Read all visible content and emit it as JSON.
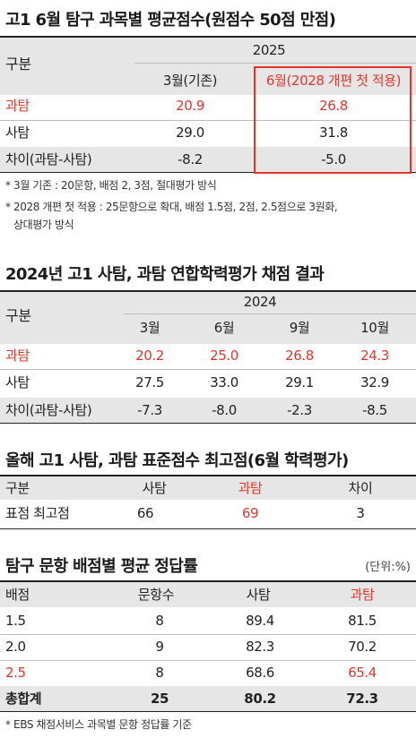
{
  "section1": {
    "title": "고1 6월 탐구 과목별 평균점수(원점수 50점 만점)",
    "header_label": "구분",
    "year": "2025",
    "col1": "3월(기존)",
    "col2": "6월(2028 개편 첫 적용)",
    "rows": [
      {
        "label": "과탐",
        "v1": "20.9",
        "v2": "26.8"
      },
      {
        "label": "사탐",
        "v1": "29.0",
        "v2": "31.8"
      },
      {
        "label": "차이(과탐-사탐)",
        "v1": "-8.2",
        "v2": "-5.0"
      }
    ],
    "note1": "* 3월 기존 : 20문항, 배점 2, 3점, 절대평가 방식",
    "note2a": "* 2028 개편 첫 적용 : 25문항으로 확대, 배점 1.5점, 2점, 2.5점으로 3원화,",
    "note2b": "상대평가 방식"
  },
  "section2": {
    "title": "2024년 고1 사탐, 과탐 연합학력평가 채점 결과",
    "header_label": "구분",
    "year": "2024",
    "months": [
      "3월",
      "6월",
      "9월",
      "10월"
    ],
    "rows": [
      {
        "label": "과탐",
        "values": [
          "20.2",
          "25.0",
          "26.8",
          "24.3"
        ]
      },
      {
        "label": "사탐",
        "values": [
          "27.5",
          "33.0",
          "29.1",
          "32.9"
        ]
      },
      {
        "label": "차이(과탐-사탐)",
        "values": [
          "-7.3",
          "-8.0",
          "-2.3",
          "-8.5"
        ]
      }
    ]
  },
  "section3": {
    "title": "올해 고1 사탐, 과탐 표준점수 최고점(6월 학력평가)",
    "headers": [
      "구분",
      "사탐",
      "과탐",
      "차이"
    ],
    "row": [
      "표점 최고점",
      "66",
      "69",
      "3"
    ]
  },
  "section4": {
    "title": "탐구 문항 배점별 평균 정답률",
    "unit": "(단위:%)",
    "headers": [
      "배점",
      "문항수",
      "사탐",
      "과탐"
    ],
    "rows": [
      [
        "1.5",
        "8",
        "89.4",
        "81.5"
      ],
      [
        "2.0",
        "9",
        "82.3",
        "70.2"
      ],
      [
        "2.5",
        "8",
        "68.6",
        "65.4"
      ]
    ],
    "total": [
      "총합계",
      "25",
      "80.2",
      "72.3"
    ],
    "note": "* EBS 채점서비스 과목별 문항 정답률 기준"
  },
  "colors": {
    "accent_red": "#e5352b",
    "band_gray": "#e6e6e6"
  }
}
